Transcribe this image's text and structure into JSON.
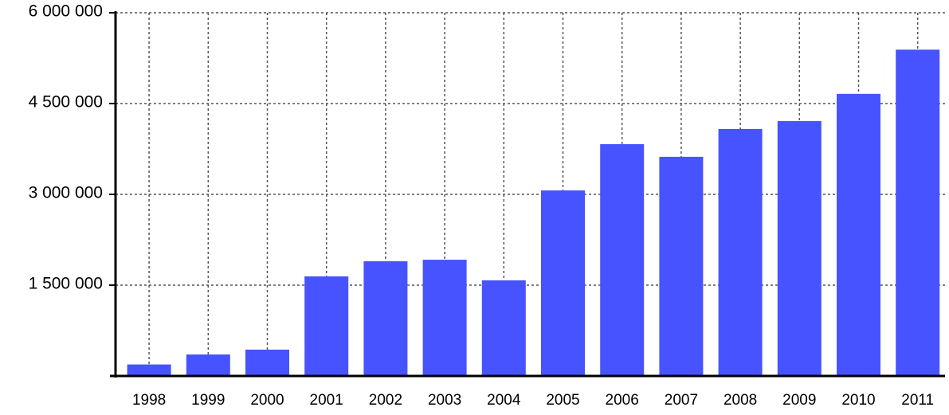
{
  "chart_data": {
    "type": "bar",
    "categories": [
      "1998",
      "1999",
      "2000",
      "2001",
      "2002",
      "2003",
      "2004",
      "2005",
      "2006",
      "2007",
      "2008",
      "2009",
      "2010",
      "2011"
    ],
    "values": [
      190000,
      355000,
      435000,
      1645000,
      1895000,
      1920000,
      1580000,
      3065000,
      3830000,
      3620000,
      4080000,
      4210000,
      4660000,
      5390000
    ],
    "color": "#4753ff",
    "ylim": [
      0,
      6000000
    ],
    "yticks": [
      {
        "value": 1500000,
        "label": "1 500 000"
      },
      {
        "value": 3000000,
        "label": "3 000 000"
      },
      {
        "value": 4500000,
        "label": "4 500 000"
      },
      {
        "value": 6000000,
        "label": "6 000 000"
      }
    ],
    "grid": true
  }
}
